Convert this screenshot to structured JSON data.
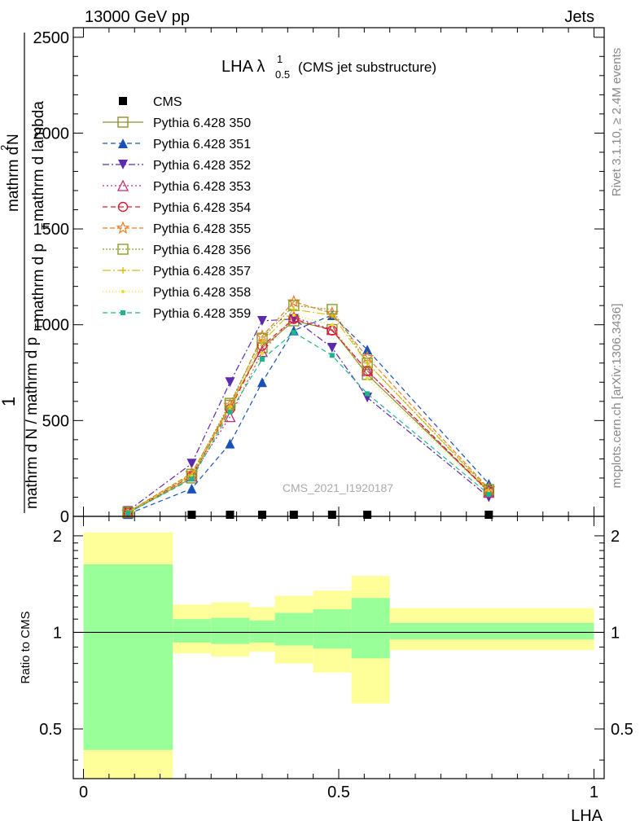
{
  "header": {
    "left": "13000 GeV pp",
    "right": "Jets"
  },
  "side_labels": {
    "rivet": "Rivet 3.1.10, ≥ 2.4M events",
    "mcplots": "mcplots.cern.ch [arXiv:1306.3436]"
  },
  "watermark": "CMS_2021_I1920187",
  "plot_title": {
    "main": "LHA λ",
    "sup": "1",
    "sub": "0.5",
    "note": "(CMS jet substructure)"
  },
  "y_label": {
    "prefix": "1",
    "denominator": "mathrm d N / mathrm d p",
    "den_sub": "T",
    "numerator": "mathrm d",
    "num_sup": "2",
    "num_tail": "N",
    "lower": "mathrm d p",
    "lower_sub": "T",
    "lower_tail": " mathrm d lambda"
  },
  "colors": {
    "cms": "#000000",
    "p350": "#8f8f2e",
    "p351": "#1852b8",
    "p352": "#5c2ab0",
    "p353": "#c02a7e",
    "p354": "#d81b2c",
    "p355": "#f07c23",
    "p356": "#8b9a26",
    "p357": "#d8c01a",
    "p358": "#e5e11e",
    "p359": "#1fb58a",
    "band_inner": "#99ff99",
    "band_outer": "#ffff99"
  },
  "chart_data": [
    {
      "type": "line",
      "panel": "main",
      "ylim": [
        0,
        2550
      ],
      "xlim": [
        -0.02,
        1.02
      ],
      "y_ticks": [
        0,
        500,
        1000,
        1500,
        2000,
        2500
      ],
      "y_tick_labels": [
        "0",
        "500",
        "1000",
        "1500",
        "2000",
        "2500"
      ],
      "x": [
        0.087,
        0.212,
        0.287,
        0.35,
        0.412,
        0.487,
        0.556,
        0.794
      ],
      "series": [
        {
          "name": "CMS",
          "style": "cms",
          "values": [
            2,
            2,
            2,
            2,
            2,
            2,
            2,
            2
          ]
        },
        {
          "name": "Pythia 6.428 350",
          "style": "p350",
          "values": [
            18,
            200,
            580,
            880,
            1020,
            975,
            740,
            130
          ]
        },
        {
          "name": "Pythia 6.428 351",
          "style": "p351",
          "values": [
            12,
            145,
            380,
            700,
            970,
            1050,
            870,
            170
          ]
        },
        {
          "name": "Pythia 6.428 352",
          "style": "p352",
          "values": [
            28,
            275,
            700,
            1020,
            1030,
            880,
            620,
            100
          ]
        },
        {
          "name": "Pythia 6.428 353",
          "style": "p353",
          "values": [
            20,
            210,
            520,
            860,
            1040,
            975,
            760,
            125
          ]
        },
        {
          "name": "Pythia 6.428 354",
          "style": "p354",
          "values": [
            20,
            210,
            560,
            890,
            1030,
            970,
            760,
            130
          ]
        },
        {
          "name": "Pythia 6.428 355",
          "style": "p355",
          "values": [
            22,
            225,
            580,
            940,
            1120,
            1060,
            830,
            145
          ]
        },
        {
          "name": "Pythia 6.428 356",
          "style": "p356",
          "values": [
            22,
            220,
            590,
            930,
            1100,
            1080,
            800,
            140
          ]
        },
        {
          "name": "Pythia 6.428 357",
          "style": "p357",
          "values": [
            21,
            215,
            570,
            910,
            1080,
            1050,
            800,
            135
          ]
        },
        {
          "name": "Pythia 6.428 358",
          "style": "p358",
          "values": [
            19,
            205,
            555,
            850,
            1050,
            1000,
            720,
            125
          ]
        },
        {
          "name": "Pythia 6.428 359",
          "style": "p359",
          "values": [
            17,
            195,
            545,
            820,
            960,
            840,
            640,
            115
          ]
        }
      ]
    },
    {
      "type": "area",
      "panel": "ratio",
      "ylabel": "Ratio to CMS",
      "ylim": [
        0.35,
        2.3
      ],
      "y_ticks": [
        0.5,
        1,
        2
      ],
      "y_tick_labels": [
        "0.5",
        "1",
        "2"
      ],
      "x_ticks": [
        0,
        0.5,
        1
      ],
      "x_tick_labels": [
        "0",
        "0.5",
        "1"
      ],
      "xlabel": "LHA",
      "bins": [
        {
          "x0": 0.0,
          "x1": 0.175,
          "inner": [
            0.43,
            1.63
          ],
          "outer": [
            0.25,
            2.05
          ]
        },
        {
          "x0": 0.175,
          "x1": 0.25,
          "inner": [
            0.93,
            1.1
          ],
          "outer": [
            0.86,
            1.22
          ]
        },
        {
          "x0": 0.25,
          "x1": 0.325,
          "inner": [
            0.92,
            1.11
          ],
          "outer": [
            0.84,
            1.24
          ]
        },
        {
          "x0": 0.325,
          "x1": 0.375,
          "inner": [
            0.93,
            1.09
          ],
          "outer": [
            0.87,
            1.2
          ]
        },
        {
          "x0": 0.375,
          "x1": 0.45,
          "inner": [
            0.91,
            1.15
          ],
          "outer": [
            0.8,
            1.3
          ]
        },
        {
          "x0": 0.45,
          "x1": 0.525,
          "inner": [
            0.89,
            1.18
          ],
          "outer": [
            0.75,
            1.35
          ]
        },
        {
          "x0": 0.525,
          "x1": 0.6,
          "inner": [
            0.83,
            1.28
          ],
          "outer": [
            0.6,
            1.5
          ]
        },
        {
          "x0": 0.6,
          "x1": 1.0,
          "inner": [
            0.95,
            1.07
          ],
          "outer": [
            0.88,
            1.19
          ]
        }
      ],
      "reference": 1
    }
  ]
}
